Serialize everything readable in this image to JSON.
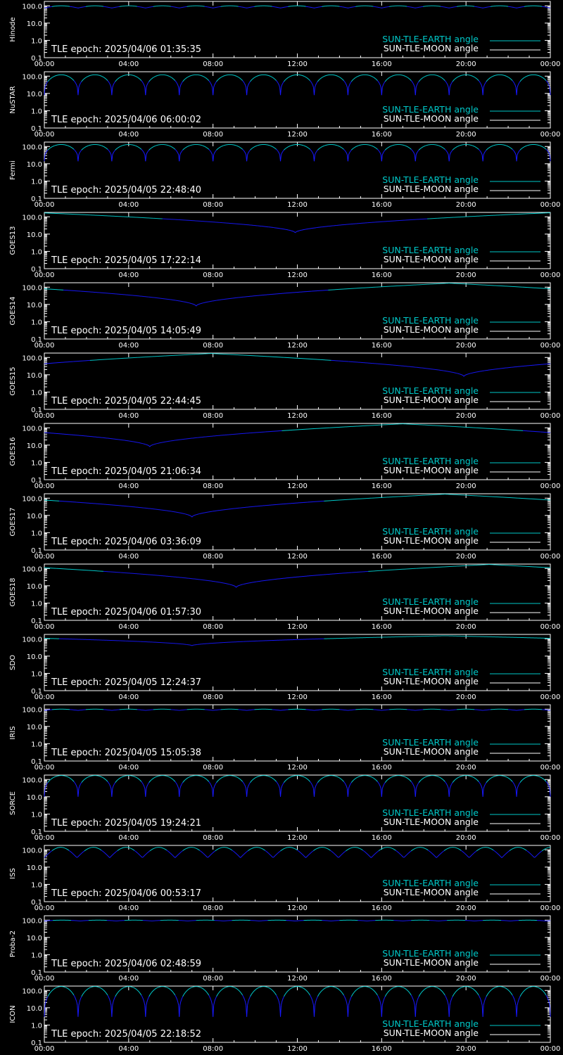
{
  "chart_data": {
    "type": "line",
    "x_ticks": [
      "00:00",
      "04:00",
      "08:00",
      "12:00",
      "16:00",
      "20:00",
      "00:00"
    ],
    "y_ticks": [
      "100.0",
      "10.0",
      "1.0",
      "0.1"
    ],
    "ylim": [
      0.1,
      180
    ],
    "y_scale": "log",
    "xlim_hours": [
      0,
      24
    ],
    "legend": [
      {
        "label": "SUN-TLE-EARTH angle",
        "color": "#00c8c8"
      },
      {
        "label": "SUN-TLE-MOON angle",
        "color": "#ffffff"
      }
    ],
    "colors": {
      "earth_angle": "#00d0d0",
      "earth_angle_dip": "#1818ff",
      "moon_angle": "#ffffff",
      "axes": "#ffffff",
      "background": "#000000"
    },
    "panels": [
      {
        "satellite": "Hinode",
        "epoch": "TLE epoch: 2025/04/06 01:35:35",
        "pattern": "orbital",
        "period_h": 1.6,
        "max": 100,
        "min": 75,
        "sharp": false
      },
      {
        "satellite": "NuSTAR",
        "epoch": "TLE epoch: 2025/04/06 06:00:02",
        "pattern": "orbital",
        "period_h": 1.6,
        "max": 120,
        "min": 8,
        "sharp": true
      },
      {
        "satellite": "Fermi",
        "epoch": "TLE epoch: 2025/04/05 22:48:40",
        "pattern": "orbital",
        "period_h": 1.6,
        "max": 130,
        "min": 14,
        "sharp": true
      },
      {
        "satellite": "GOES13",
        "epoch": "TLE epoch: 2025/04/05 17:22:14",
        "pattern": "geo",
        "center_h": 11.9,
        "max": 170,
        "min": 12
      },
      {
        "satellite": "GOES14",
        "epoch": "TLE epoch: 2025/04/05 14:05:49",
        "pattern": "geo",
        "center_h": 7.2,
        "max": 170,
        "min": 8
      },
      {
        "satellite": "GOES15",
        "epoch": "TLE epoch: 2025/04/05 22:44:45",
        "pattern": "geo",
        "center_h": 19.9,
        "max": 170,
        "min": 8
      },
      {
        "satellite": "GOES16",
        "epoch": "TLE epoch: 2025/04/05 21:06:34",
        "pattern": "geo",
        "center_h": 5.0,
        "max": 170,
        "min": 8
      },
      {
        "satellite": "GOES17",
        "epoch": "TLE epoch: 2025/04/06 03:36:09",
        "pattern": "geo",
        "center_h": 7.0,
        "max": 170,
        "min": 8
      },
      {
        "satellite": "GOES18",
        "epoch": "TLE epoch: 2025/04/06 01:57:30",
        "pattern": "geo",
        "center_h": 9.1,
        "max": 170,
        "min": 8
      },
      {
        "satellite": "SDO",
        "epoch": "TLE epoch: 2025/04/05 12:24:37",
        "pattern": "geo",
        "center_h": 7.0,
        "max": 150,
        "min": 40
      },
      {
        "satellite": "IRIS",
        "epoch": "TLE epoch: 2025/04/05 15:05:38",
        "pattern": "orbital",
        "period_h": 1.6,
        "max": 100,
        "min": 85,
        "sharp": false
      },
      {
        "satellite": "SORCE",
        "epoch": "TLE epoch: 2025/04/05 19:24:21",
        "pattern": "orbital",
        "period_h": 1.6,
        "max": 170,
        "min": 10,
        "sharp": true
      },
      {
        "satellite": "ISS",
        "epoch": "TLE epoch: 2025/04/06 00:53:17",
        "pattern": "orbital",
        "period_h": 1.55,
        "max": 140,
        "min": 35,
        "sharp": false
      },
      {
        "satellite": "Proba-2",
        "epoch": "TLE epoch: 2025/04/06 02:48:59",
        "pattern": "orbital",
        "period_h": 1.7,
        "max": 100,
        "min": 90,
        "sharp": false
      },
      {
        "satellite": "ICON",
        "epoch": "TLE epoch: 2025/04/05 22:18:52",
        "pattern": "orbital",
        "period_h": 1.6,
        "max": 170,
        "min": 3,
        "sharp": true
      }
    ]
  }
}
